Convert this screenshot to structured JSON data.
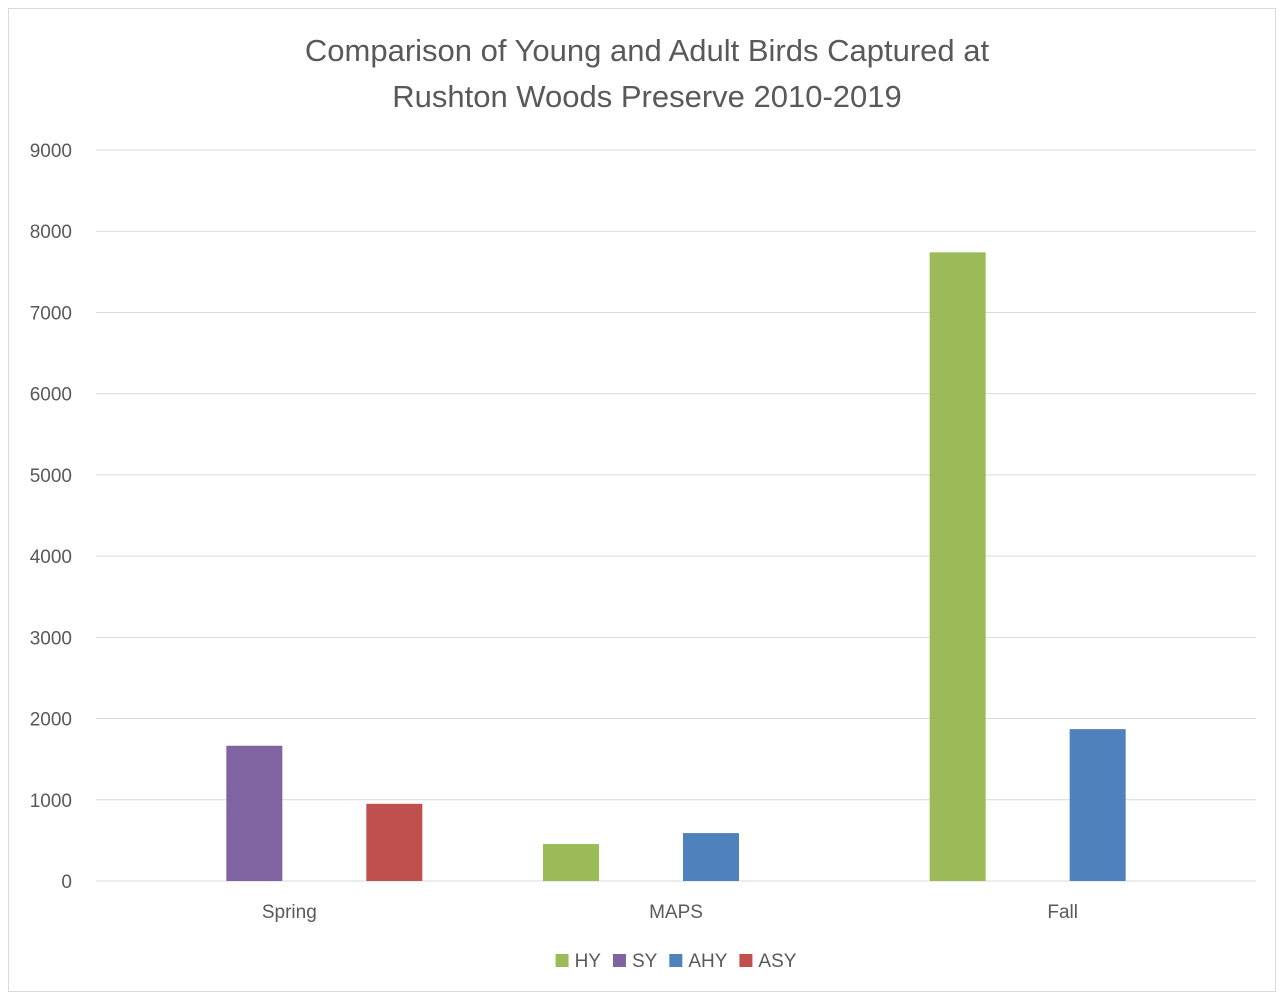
{
  "chart_data": {
    "type": "bar",
    "title_lines": [
      "Comparison of Young and Adult Birds Captured at",
      "Rushton Woods Preserve 2010-2019"
    ],
    "categories": [
      "Spring",
      "MAPS",
      "Fall"
    ],
    "series": [
      {
        "name": "HY",
        "color": "#9bbb59",
        "values": [
          null,
          455,
          7740
        ]
      },
      {
        "name": "SY",
        "color": "#8064a2",
        "values": [
          1665,
          null,
          null
        ]
      },
      {
        "name": "AHY",
        "color": "#4f81bd",
        "values": [
          null,
          590,
          1870
        ]
      },
      {
        "name": "ASY",
        "color": "#c0504d",
        "values": [
          950,
          null,
          null
        ]
      }
    ],
    "ylim": [
      0,
      9000
    ],
    "yticks": [
      0,
      1000,
      2000,
      3000,
      4000,
      5000,
      6000,
      7000,
      8000,
      9000
    ],
    "xlabel": "",
    "ylabel": "",
    "grid": true,
    "legend_position": "bottom"
  }
}
